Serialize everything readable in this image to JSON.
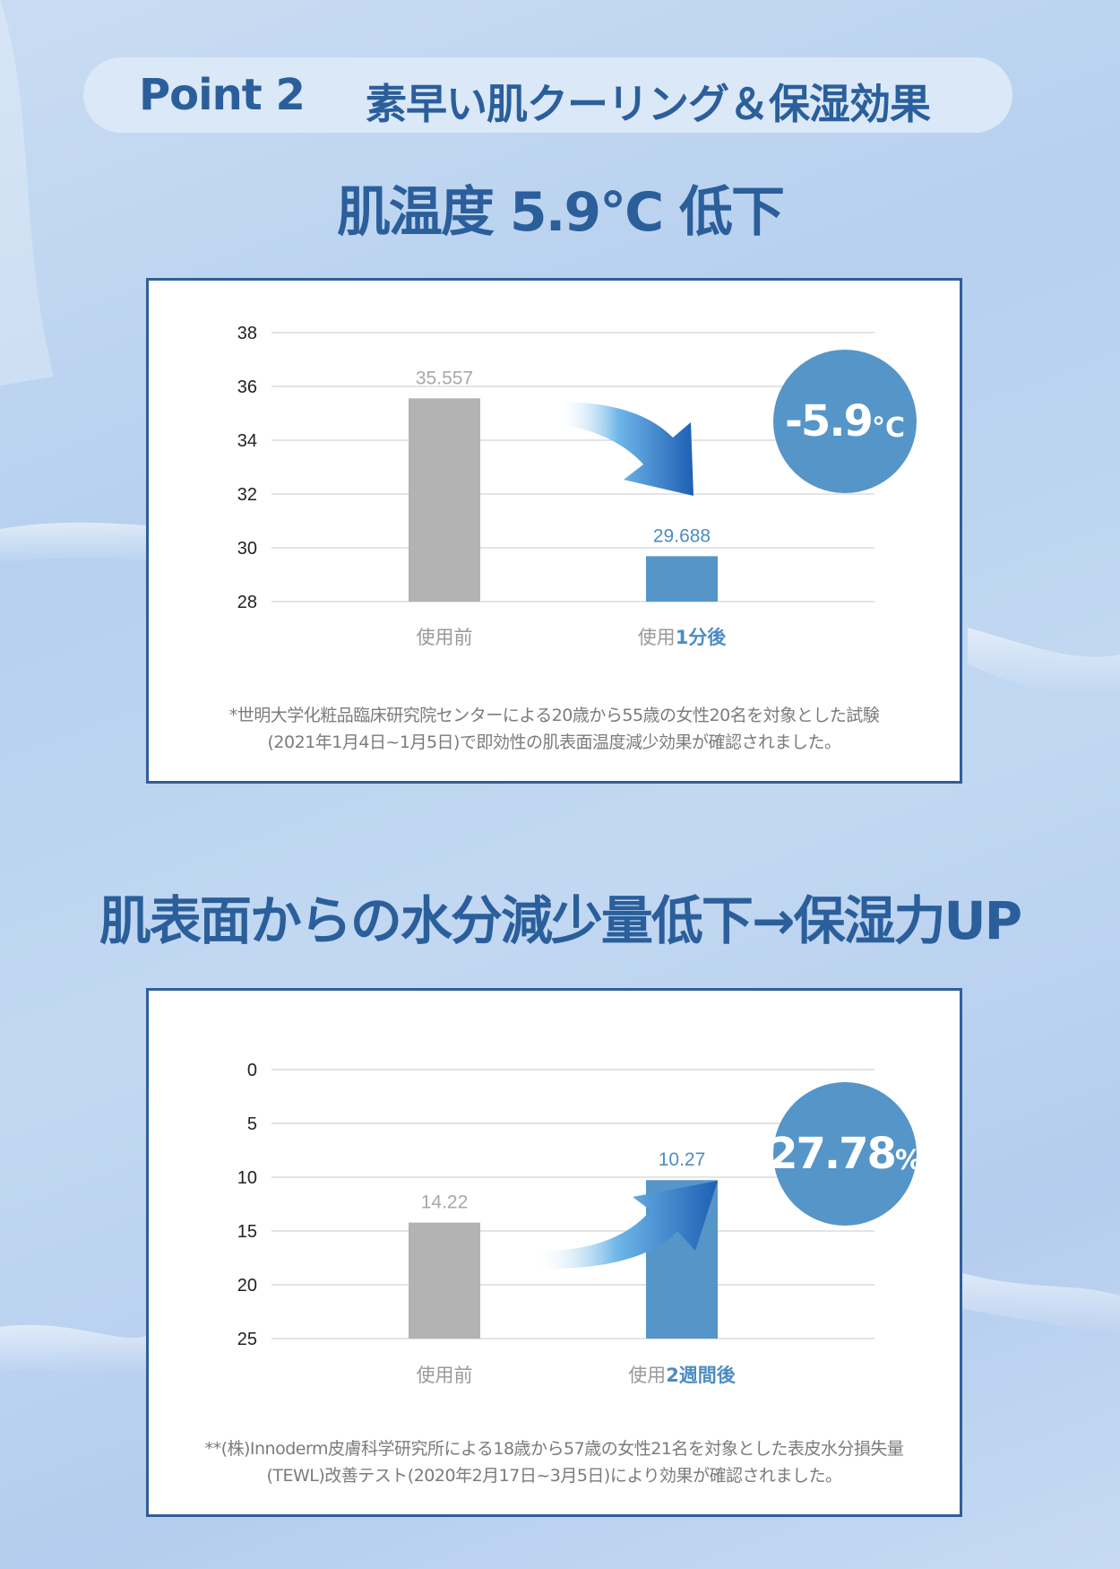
{
  "header": {
    "point_label": "Point 2",
    "title": "素早い肌クーリング＆保湿効果"
  },
  "section1": {
    "heading": "肌温度 5.9°C 低下",
    "badge_value": "-5.9",
    "badge_unit": "°C",
    "note_line1": "*世明大学化粧品臨床研究院センターによる20歳から55歳の女性20名を対象とした試験",
    "note_line2": "(2021年1月4日~1月5日)で即効性の肌表面温度減少効果が確認されました。"
  },
  "section2": {
    "heading": "肌表面からの水分減少量低下→保湿力UP",
    "badge_value": "27.78",
    "badge_unit": "%",
    "note_line1": "**(株)Innoderm皮膚科学研究所による18歳から57歳の女性21名を対象とした表皮水分損失量",
    "note_line2": "(TEWL)改善テスト(2020年2月17日~3月5日)により効果が確認されました。"
  },
  "colors": {
    "accent": "#2b5f9b",
    "bar_before": "#b3b3b3",
    "bar_after": "#5695c8",
    "badge": "#5695c8"
  },
  "chart_data": [
    {
      "type": "bar",
      "categories": [
        {
          "prefix": "使用前",
          "highlight": ""
        },
        {
          "prefix": "使用",
          "highlight": "1分後"
        }
      ],
      "values": [
        35.557,
        29.688
      ],
      "value_labels": [
        "35.557",
        "29.688"
      ],
      "ylim": [
        28,
        38
      ],
      "yticks": [
        38,
        36,
        34,
        32,
        30,
        28
      ],
      "inverted": false,
      "grid": true
    },
    {
      "type": "bar",
      "categories": [
        {
          "prefix": "使用前",
          "highlight": ""
        },
        {
          "prefix": "使用",
          "highlight": "2週間後"
        }
      ],
      "values": [
        14.22,
        10.27
      ],
      "value_labels": [
        "14.22",
        "10.27"
      ],
      "ylim": [
        0,
        25
      ],
      "yticks": [
        0,
        5,
        10,
        15,
        20,
        25
      ],
      "inverted": true,
      "grid": true
    }
  ]
}
